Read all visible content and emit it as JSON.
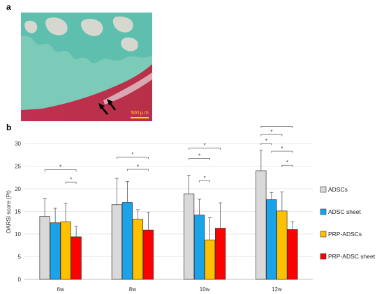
{
  "panel_a": {
    "letter": "a",
    "scale_bar_label": "500 μ m",
    "arrow_icon": "black-arrow-icon"
  },
  "panel_b": {
    "letter": "b"
  },
  "chart_data": {
    "type": "bar",
    "title": "",
    "xlabel": "",
    "ylabel": "OARSI score (Pt)",
    "ylim": [
      0,
      30
    ],
    "yticks": [
      0,
      5,
      10,
      15,
      20,
      25,
      30
    ],
    "categories": [
      "6w",
      "8w",
      "10w",
      "12w"
    ],
    "legend_position": "right",
    "series": [
      {
        "name": "ADSCs",
        "color": "#d9d9d9",
        "values": [
          13.9,
          16.5,
          18.9,
          24.0
        ],
        "errors": [
          4.0,
          5.8,
          4.1,
          4.5
        ]
      },
      {
        "name": "ADSC sheet",
        "color": "#1aa3e8",
        "values": [
          12.5,
          17.0,
          14.2,
          17.6
        ],
        "errors": [
          3.2,
          4.6,
          3.5,
          1.6
        ]
      },
      {
        "name": "PRP-ADSCs",
        "color": "#ffc000",
        "values": [
          12.7,
          13.3,
          8.7,
          15.1
        ],
        "errors": [
          4.1,
          2.1,
          4.9,
          4.2
        ]
      },
      {
        "name": "PRP-ADSC sheet",
        "color": "#ff0000",
        "values": [
          9.4,
          10.9,
          11.3,
          11.0
        ],
        "errors": [
          2.3,
          3.9,
          5.6,
          1.7
        ]
      }
    ],
    "significance": [
      {
        "category": "6w",
        "from": 0,
        "to": 3,
        "y": 24.2,
        "label": "*"
      },
      {
        "category": "6w",
        "from": 2,
        "to": 3,
        "y": 21.5,
        "label": "*"
      },
      {
        "category": "8w",
        "from": 0,
        "to": 3,
        "y": 27.0,
        "label": "*"
      },
      {
        "category": "8w",
        "from": 1,
        "to": 3,
        "y": 24.3,
        "label": "*"
      },
      {
        "category": "10w",
        "from": 0,
        "to": 3,
        "y": 29.0,
        "label": "*"
      },
      {
        "category": "10w",
        "from": 0,
        "to": 2,
        "y": 26.7,
        "label": "*"
      },
      {
        "category": "10w",
        "from": 1,
        "to": 2,
        "y": 21.8,
        "label": "*"
      },
      {
        "category": "12w",
        "from": 0,
        "to": 3,
        "y": 33.8,
        "label": "*"
      },
      {
        "category": "12w",
        "from": 0,
        "to": 2,
        "y": 32.0,
        "label": "*"
      },
      {
        "category": "12w",
        "from": 0,
        "to": 1,
        "y": 30.0,
        "label": "*"
      },
      {
        "category": "12w",
        "from": 1,
        "to": 3,
        "y": 28.3,
        "label": "*"
      },
      {
        "category": "12w",
        "from": 2,
        "to": 3,
        "y": 25.2,
        "label": "*"
      }
    ]
  }
}
